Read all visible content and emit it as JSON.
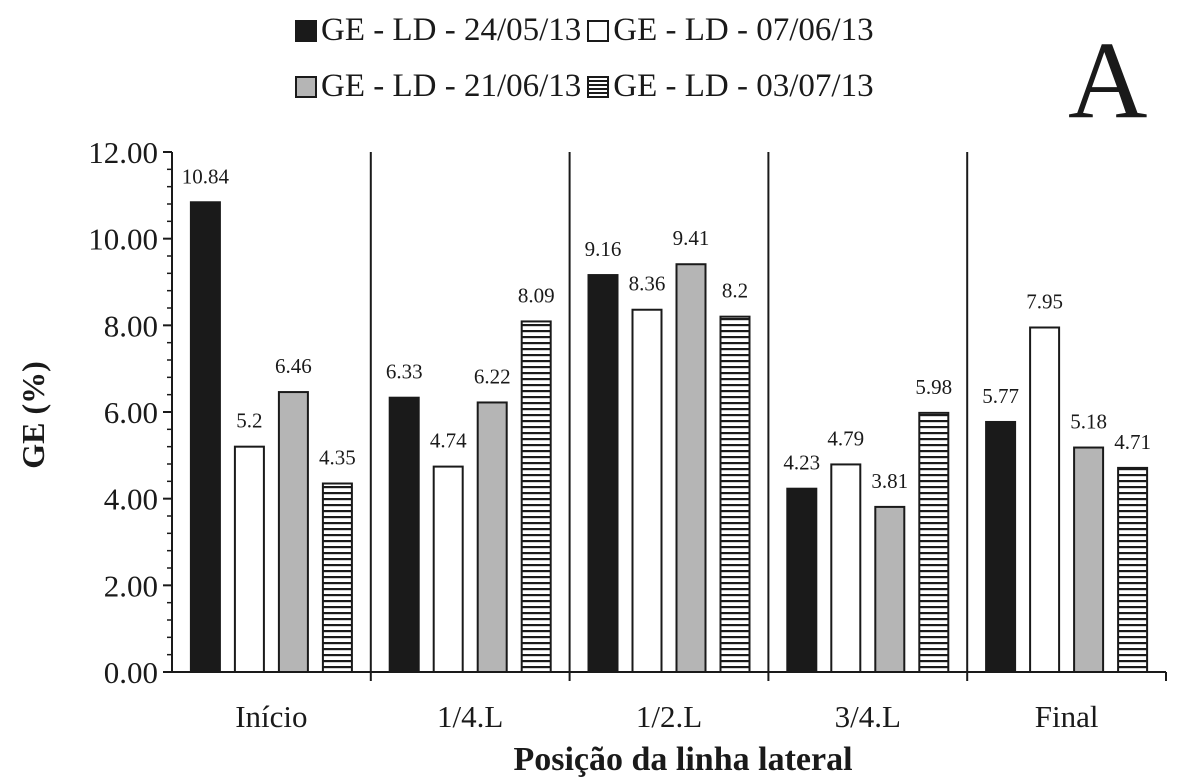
{
  "panel_letter": "A",
  "legend": [
    {
      "label": "GE - LD - 24/05/13",
      "style": "black"
    },
    {
      "label": "GE - LD - 07/06/13",
      "style": "white"
    },
    {
      "label": "GE - LD - 21/06/13",
      "style": "gray"
    },
    {
      "label": "GE - LD - 03/07/13",
      "style": "stripe"
    }
  ],
  "chart_data": {
    "type": "bar",
    "title": "",
    "xlabel": "Posição da linha lateral",
    "ylabel": "GE (%)",
    "ylim": [
      0,
      12
    ],
    "yticks": [
      "0.00",
      "2.00",
      "4.00",
      "6.00",
      "8.00",
      "10.00",
      "12.00"
    ],
    "categories": [
      "Início",
      "1/4.L",
      "1/2.L",
      "3/4.L",
      "Final"
    ],
    "series": [
      {
        "name": "GE - LD - 24/05/13",
        "fill": "#1a1a1a",
        "values": [
          10.84,
          6.33,
          9.16,
          4.23,
          5.77
        ],
        "labels": [
          "10.84",
          "6.33",
          "9.16",
          "4.23",
          "5.77"
        ]
      },
      {
        "name": "GE - LD - 07/06/13",
        "fill": "#ffffff",
        "values": [
          5.2,
          4.74,
          8.36,
          4.79,
          7.95
        ],
        "labels": [
          "5.2",
          "4.74",
          "8.36",
          "4.79",
          "7.95"
        ]
      },
      {
        "name": "GE - LD - 21/06/13",
        "fill": "#b5b5b5",
        "values": [
          6.46,
          6.22,
          9.41,
          3.81,
          5.18
        ],
        "labels": [
          "6.46",
          "6.22",
          "9.41",
          "3.81",
          "5.18"
        ]
      },
      {
        "name": "GE - LD - 03/07/13",
        "fill": "stripe",
        "values": [
          4.35,
          8.09,
          8.2,
          5.98,
          4.71
        ],
        "labels": [
          "4.35",
          "8.09",
          "8.2",
          "5.98",
          "4.71"
        ]
      }
    ],
    "grid": false,
    "category_separators": true,
    "legend_position": "top"
  }
}
